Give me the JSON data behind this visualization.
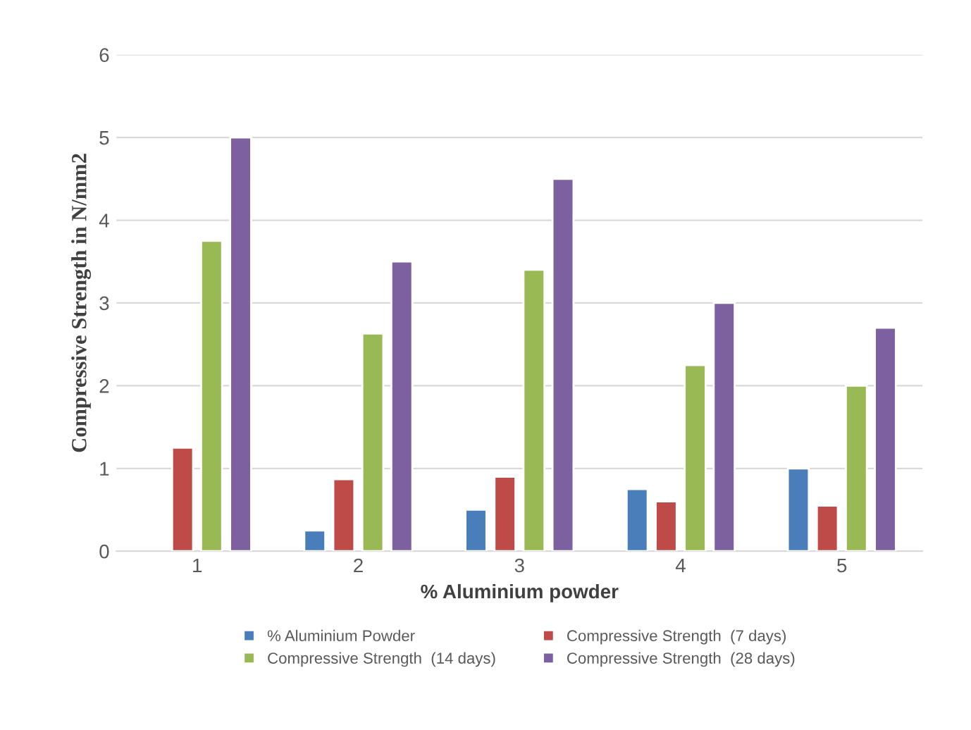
{
  "chart_data": {
    "type": "bar",
    "xlabel": "% Aluminium powder",
    "ylabel": "Compressive Strength in N/mm2",
    "categories": [
      "1",
      "2",
      "3",
      "4",
      "5"
    ],
    "series": [
      {
        "name": "% Aluminium Powder",
        "color": "#4a7ebb",
        "values": [
          null,
          0.25,
          0.5,
          0.75,
          1.0
        ]
      },
      {
        "name": "Compressive Strength  (7 days)",
        "color": "#be4b48",
        "values": [
          1.25,
          0.87,
          0.9,
          0.6,
          0.55
        ]
      },
      {
        "name": "Compressive Strength  (14 days)",
        "color": "#98b954",
        "values": [
          3.75,
          2.63,
          3.4,
          2.25,
          2.0
        ]
      },
      {
        "name": "Compressive Strength  (28 days)",
        "color": "#7d60a0",
        "values": [
          5.0,
          3.5,
          4.5,
          3.0,
          2.7
        ]
      }
    ],
    "ylim": [
      0,
      6
    ],
    "yticks": [
      0,
      1,
      2,
      3,
      4,
      5,
      6
    ],
    "grid": "y",
    "legend": "bottom"
  }
}
